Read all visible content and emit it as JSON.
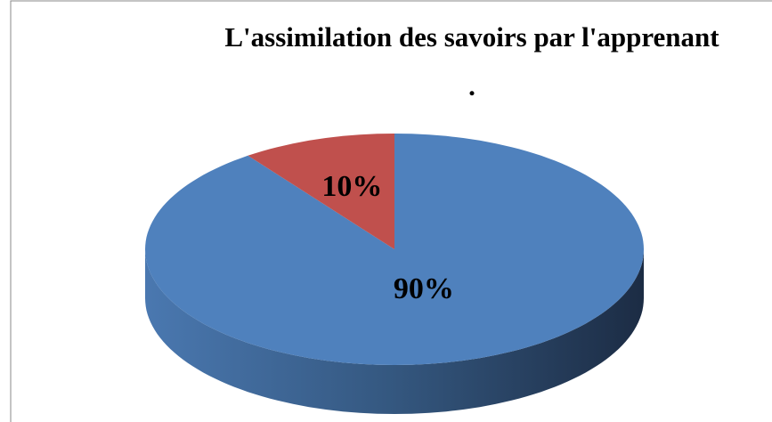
{
  "chart_data": {
    "type": "pie",
    "title": [
      "L'assimilation des savoirs par l'apprenant",
      "."
    ],
    "values": [
      90,
      10
    ],
    "value_labels": [
      "90%",
      "10%"
    ],
    "colors": [
      "#4f81bd",
      "#c0504d"
    ]
  }
}
